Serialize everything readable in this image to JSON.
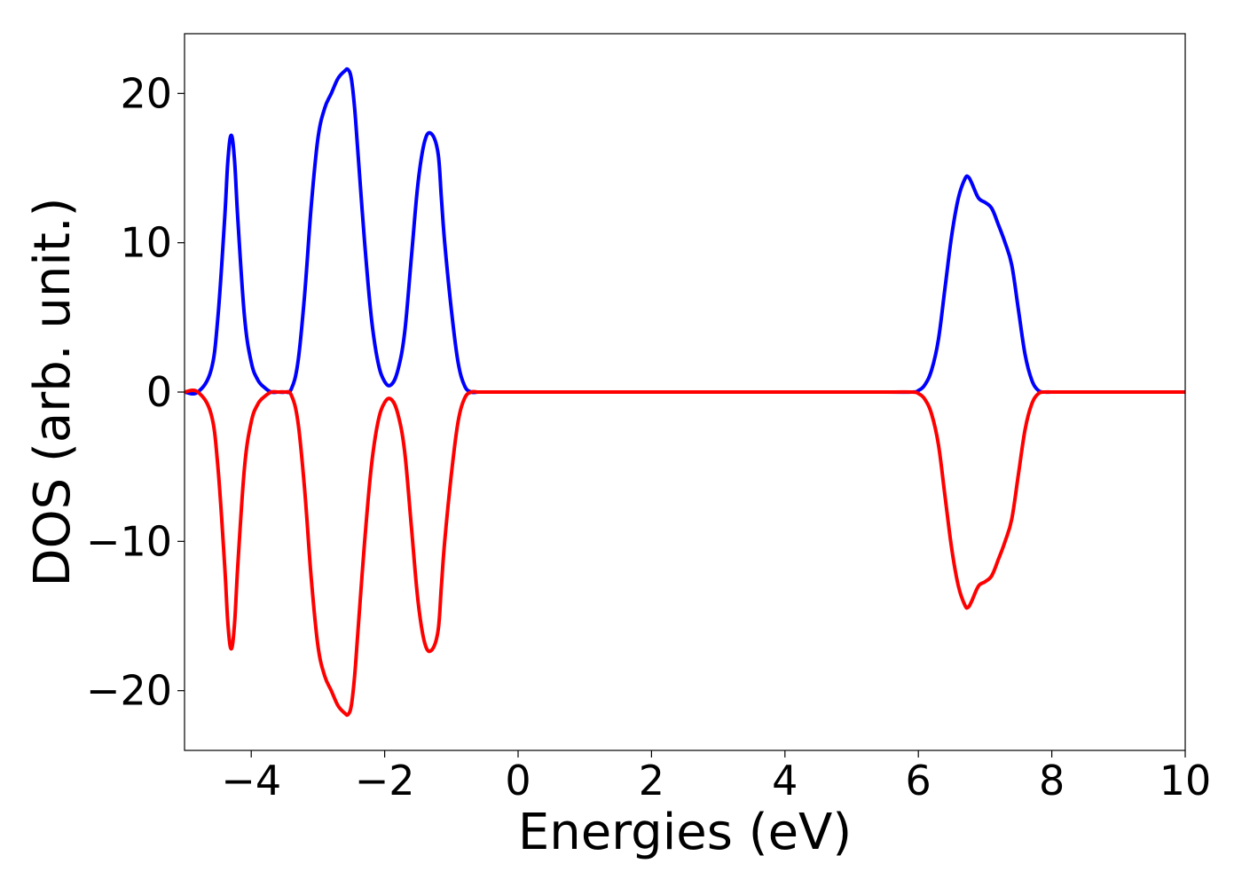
{
  "chart_data": {
    "type": "line",
    "title": "",
    "xlabel": "Energies (eV)",
    "ylabel": "DOS (arb. unit.)",
    "xlim": [
      -5,
      10
    ],
    "ylim": [
      -24,
      24
    ],
    "x_ticks": [
      -4,
      -2,
      0,
      2,
      4,
      6,
      8,
      10
    ],
    "x_tick_labels": [
      "−4",
      "−2",
      "0",
      "2",
      "4",
      "6",
      "8",
      "10"
    ],
    "y_ticks": [
      -20,
      -10,
      0,
      10,
      20
    ],
    "y_tick_labels": [
      "−20",
      "−10",
      "0",
      "10",
      "20"
    ],
    "grid": false,
    "legend": "none",
    "x": [
      -5.0,
      -4.8,
      -4.6,
      -4.5,
      -4.4,
      -4.35,
      -4.3,
      -4.25,
      -4.2,
      -4.1,
      -4.0,
      -3.9,
      -3.8,
      -3.7,
      -3.6,
      -3.5,
      -3.4,
      -3.3,
      -3.2,
      -3.1,
      -3.0,
      -2.9,
      -2.8,
      -2.7,
      -2.6,
      -2.55,
      -2.5,
      -2.45,
      -2.4,
      -2.3,
      -2.2,
      -2.1,
      -2.0,
      -1.9,
      -1.8,
      -1.7,
      -1.6,
      -1.5,
      -1.4,
      -1.3,
      -1.2,
      -1.15,
      -1.1,
      -1.0,
      -0.9,
      -0.8,
      -0.7,
      -0.6,
      -0.5,
      0.0,
      2.0,
      4.0,
      5.5,
      5.9,
      6.0,
      6.1,
      6.2,
      6.3,
      6.4,
      6.5,
      6.6,
      6.7,
      6.75,
      6.8,
      6.9,
      7.0,
      7.1,
      7.2,
      7.3,
      7.4,
      7.5,
      7.6,
      7.7,
      7.8,
      7.9,
      8.0,
      8.2,
      9.0,
      10.0
    ],
    "series": [
      {
        "color": "#0000ff",
        "values": [
          0.0,
          0.0,
          1.5,
          5.0,
          11.5,
          15.5,
          17.2,
          15.5,
          11.5,
          5.0,
          2.0,
          0.8,
          0.3,
          0.0,
          0.0,
          0.0,
          0.2,
          2.0,
          6.5,
          12.5,
          17.0,
          19.0,
          20.0,
          21.0,
          21.5,
          21.6,
          21.0,
          19.0,
          16.0,
          10.0,
          5.0,
          2.0,
          0.7,
          0.5,
          1.5,
          4.0,
          9.0,
          14.0,
          16.8,
          17.3,
          16.0,
          13.0,
          10.0,
          5.5,
          2.0,
          0.4,
          0.0,
          0.0,
          0.0,
          0.0,
          0.0,
          0.0,
          0.0,
          0.0,
          0.1,
          0.5,
          1.5,
          3.5,
          7.0,
          10.5,
          13.0,
          14.3,
          14.4,
          14.0,
          13.0,
          12.7,
          12.3,
          11.2,
          10.0,
          8.5,
          5.5,
          2.5,
          0.8,
          0.1,
          0.0,
          0.0,
          0.0,
          0.0,
          0.0
        ]
      },
      {
        "color": "#ff0000",
        "values": [
          0.0,
          0.0,
          -1.5,
          -5.0,
          -11.5,
          -15.5,
          -17.2,
          -15.5,
          -11.5,
          -5.0,
          -2.0,
          -0.8,
          -0.3,
          0.0,
          0.0,
          0.0,
          -0.2,
          -2.0,
          -6.5,
          -12.5,
          -17.0,
          -19.0,
          -20.0,
          -21.0,
          -21.5,
          -21.6,
          -21.0,
          -19.0,
          -16.0,
          -10.0,
          -5.0,
          -2.0,
          -0.7,
          -0.5,
          -1.5,
          -4.0,
          -9.0,
          -14.0,
          -16.8,
          -17.3,
          -16.0,
          -13.0,
          -10.0,
          -5.5,
          -2.0,
          -0.4,
          0.0,
          0.0,
          0.0,
          0.0,
          0.0,
          0.0,
          0.0,
          0.0,
          -0.1,
          -0.5,
          -1.5,
          -3.5,
          -7.0,
          -10.5,
          -13.0,
          -14.3,
          -14.4,
          -14.0,
          -13.0,
          -12.7,
          -12.3,
          -11.2,
          -10.0,
          -8.5,
          -5.5,
          -2.5,
          -0.8,
          -0.1,
          0.0,
          0.0,
          0.0,
          0.0,
          0.0
        ]
      }
    ]
  }
}
